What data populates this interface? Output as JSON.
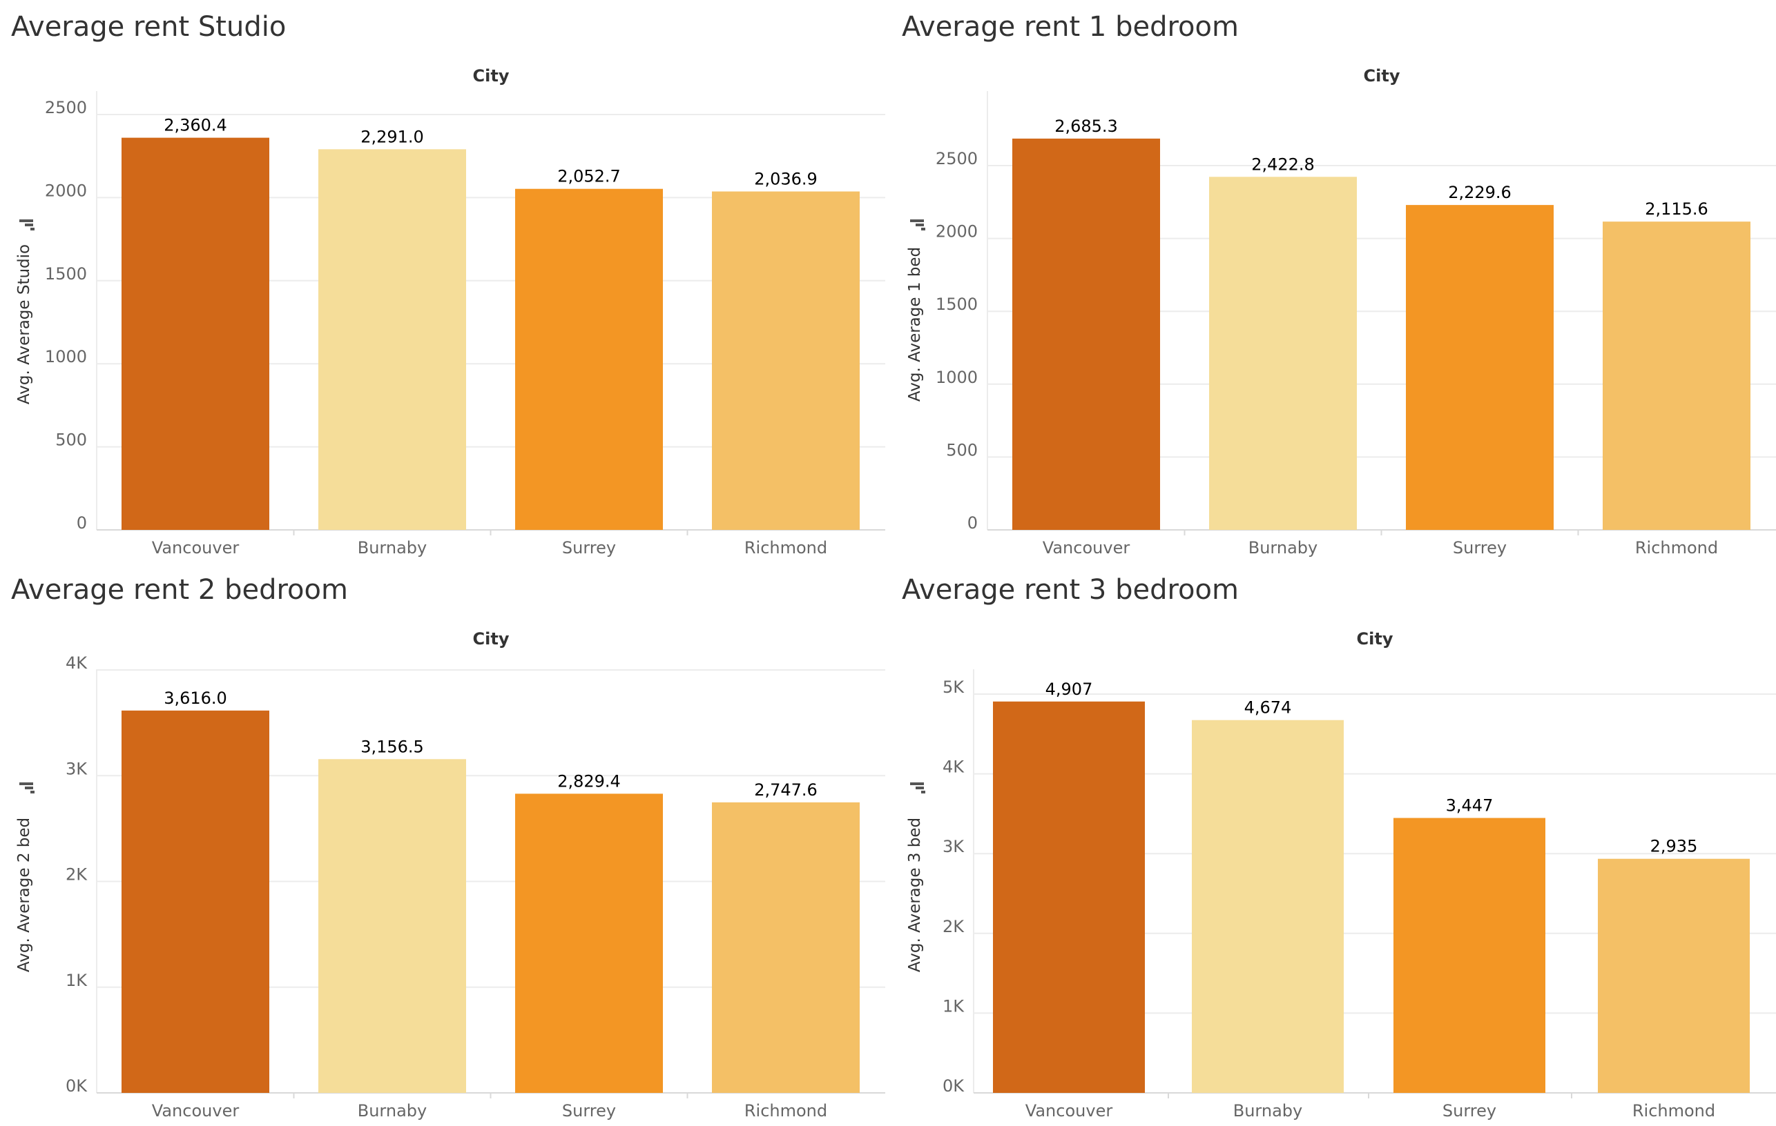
{
  "colors": {
    "Vancouver": "#d16818",
    "Burnaby": "#f5dd99",
    "Surrey": "#f39624",
    "Richmond": "#f4c066",
    "grid": "#ececec",
    "axis": "#d9d9d9",
    "tick_text": "#666666",
    "label_text": "#333333",
    "value_text": "#000000",
    "title_text": "#333333"
  },
  "chart_data": [
    {
      "type": "bar",
      "title": "Average rent Studio",
      "header": "City",
      "ylabel": "Avg. Average Studio",
      "categories": [
        "Vancouver",
        "Burnaby",
        "Surrey",
        "Richmond"
      ],
      "values": [
        2360.4,
        2291.0,
        2052.7,
        2036.9
      ],
      "value_labels": [
        "2,360.4",
        "2,291.0",
        "2,052.7",
        "2,036.9"
      ],
      "ylim": [
        0,
        2500
      ],
      "yticks": [
        0,
        500,
        1000,
        1500,
        2000,
        2500
      ],
      "ytick_labels": [
        "0",
        "500",
        "1000",
        "1500",
        "2000",
        "2500"
      ],
      "grid": true,
      "legend": "none"
    },
    {
      "type": "bar",
      "title": "Average rent 1 bedroom",
      "header": "City",
      "ylabel": "Avg. Average 1 bed",
      "categories": [
        "Vancouver",
        "Burnaby",
        "Surrey",
        "Richmond"
      ],
      "values": [
        2685.3,
        2422.8,
        2229.6,
        2115.6
      ],
      "value_labels": [
        "2,685.3",
        "2,422.8",
        "2,229.6",
        "2,115.6"
      ],
      "ylim": [
        0,
        2685.3
      ],
      "yticks": [
        0,
        500,
        1000,
        1500,
        2000,
        2500
      ],
      "ytick_labels": [
        "0",
        "500",
        "1000",
        "1500",
        "2000",
        "2500"
      ],
      "grid": true,
      "legend": "none"
    },
    {
      "type": "bar",
      "title": "Average rent 2 bedroom",
      "header": "City",
      "ylabel": "Avg. Average 2 bed",
      "categories": [
        "Vancouver",
        "Burnaby",
        "Surrey",
        "Richmond"
      ],
      "values": [
        3616.0,
        3156.5,
        2829.4,
        2747.6
      ],
      "value_labels": [
        "3,616.0",
        "3,156.5",
        "2,829.4",
        "2,747.6"
      ],
      "ylim": [
        0,
        4000
      ],
      "yticks": [
        0,
        1000,
        2000,
        3000,
        4000
      ],
      "ytick_labels": [
        "0K",
        "1K",
        "2K",
        "3K",
        "4K"
      ],
      "grid": true,
      "legend": "none"
    },
    {
      "type": "bar",
      "title": "Average rent 3 bedroom",
      "header": "City",
      "ylabel": "Avg. Average 3 bed",
      "categories": [
        "Vancouver",
        "Burnaby",
        "Surrey",
        "Richmond"
      ],
      "values": [
        4907,
        4674,
        3447,
        2935
      ],
      "value_labels": [
        "4,907",
        "4,674",
        "3,447",
        "2,935"
      ],
      "ylim": [
        0,
        5000
      ],
      "yticks": [
        0,
        1000,
        2000,
        3000,
        4000,
        5000
      ],
      "ytick_labels": [
        "0K",
        "1K",
        "2K",
        "3K",
        "4K",
        "5K"
      ],
      "grid": true,
      "legend": "none"
    }
  ]
}
